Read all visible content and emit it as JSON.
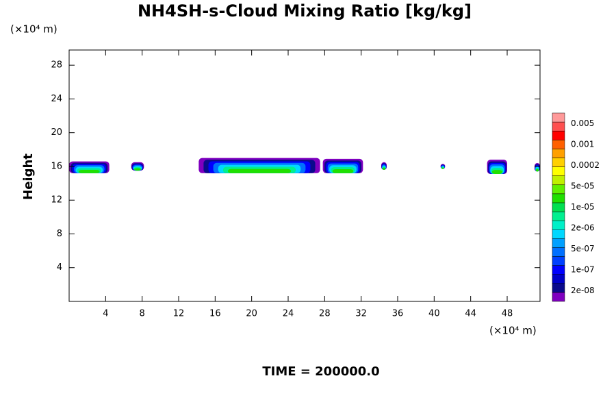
{
  "chart_data": {
    "type": "contour",
    "title": "NH4SH-s-Cloud Mixing Ratio [kg/kg]",
    "y_label": "Height",
    "y_unit": "(×10⁴ m)",
    "x_unit": "(×10⁴ m)",
    "footer": "TIME = 200000.0",
    "xlim": [
      0,
      51.6
    ],
    "xticks": [
      4,
      8,
      12,
      16,
      20,
      24,
      28,
      32,
      36,
      40,
      44,
      48
    ],
    "ylim": [
      0,
      29.8
    ],
    "yticks": [
      4,
      8,
      12,
      16,
      20,
      24,
      28
    ],
    "colorbar": {
      "colors": [
        "#7f00bf",
        "#0a0a8c",
        "#0000c8",
        "#0000ff",
        "#0040ff",
        "#0070ff",
        "#00a0ff",
        "#00d8ff",
        "#00f0c8",
        "#00f090",
        "#00e050",
        "#20e000",
        "#60f000",
        "#c0f000",
        "#ffff00",
        "#ffd000",
        "#ffa000",
        "#ff6000",
        "#ff0000",
        "#ff5050",
        "#ff9999"
      ],
      "labels": [
        {
          "value": 2e-08,
          "label": "2e-08"
        },
        {
          "value": 1e-07,
          "label": "1e-07"
        },
        {
          "value": 5e-07,
          "label": "5e-07"
        },
        {
          "value": 2e-06,
          "label": "2e-06"
        },
        {
          "value": 1e-05,
          "label": "1e-05"
        },
        {
          "value": 5e-05,
          "label": "5e-05"
        },
        {
          "value": 0.0002,
          "label": "0.0002"
        },
        {
          "value": 0.001,
          "label": "0.001"
        },
        {
          "value": 0.005,
          "label": "0.005"
        }
      ]
    },
    "cloud_regions": [
      {
        "x": [
          0,
          4.4
        ],
        "y": [
          15.2,
          16.6
        ]
      },
      {
        "x": [
          6.8,
          8.2
        ],
        "y": [
          15.5,
          16.5
        ]
      },
      {
        "x": [
          14.2,
          27.5
        ],
        "y": [
          15.2,
          17
        ]
      },
      {
        "x": [
          27.8,
          32.2
        ],
        "y": [
          15.2,
          16.9
        ]
      },
      {
        "x": [
          34.2,
          34.8
        ],
        "y": [
          15.6,
          16.5
        ]
      },
      {
        "x": [
          40.7,
          41.2
        ],
        "y": [
          15.7,
          16.3
        ]
      },
      {
        "x": [
          45.8,
          48
        ],
        "y": [
          15.1,
          16.8
        ]
      },
      {
        "x": [
          51,
          51.6
        ],
        "y": [
          15.4,
          16.4
        ]
      }
    ]
  }
}
